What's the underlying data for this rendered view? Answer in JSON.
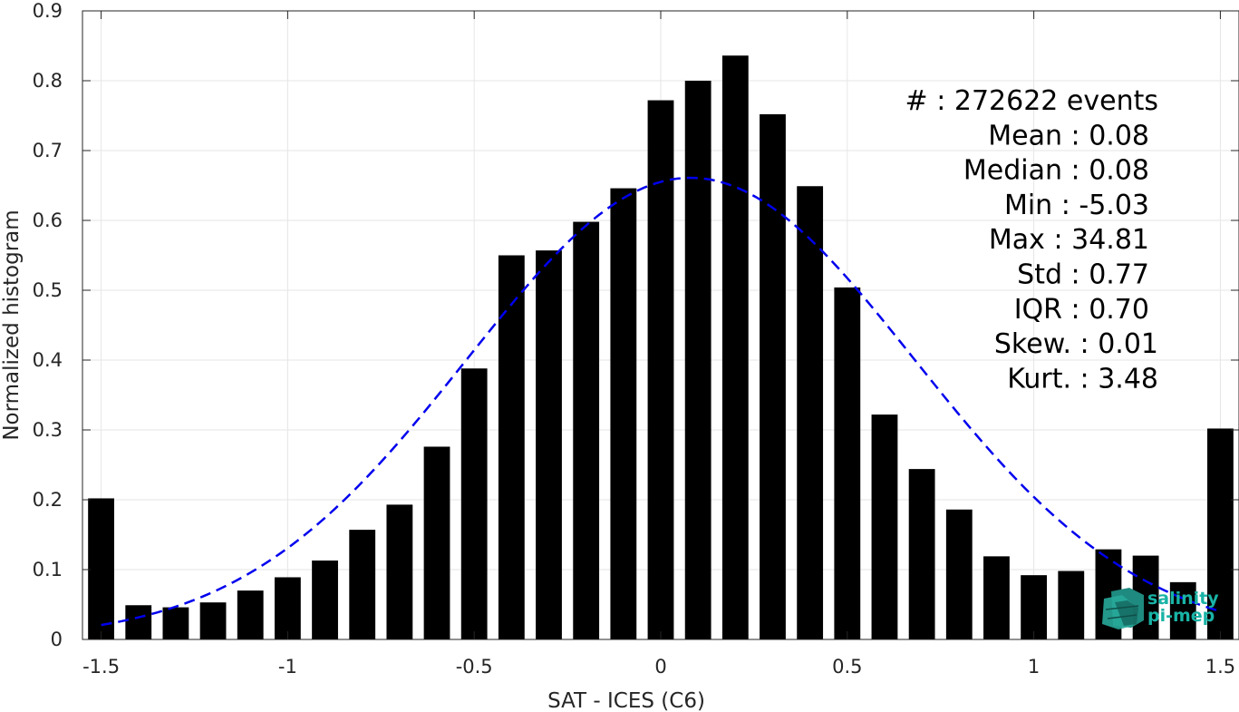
{
  "chart_data": {
    "type": "bar",
    "xlabel": "SAT - ICES (C6)",
    "ylabel": "Normalized histogram",
    "xlim": [
      -1.55,
      1.55
    ],
    "ylim": [
      0,
      0.9
    ],
    "xticks": [
      -1.5,
      -1,
      -0.5,
      0,
      0.5,
      1,
      1.5
    ],
    "xtick_labels": [
      "-1.5",
      "-1",
      "-0.5",
      "0",
      "0.5",
      "1",
      "1.5"
    ],
    "yticks": [
      0,
      0.1,
      0.2,
      0.3,
      0.4,
      0.5,
      0.6,
      0.7,
      0.8,
      0.9
    ],
    "ytick_labels": [
      "0",
      "0.1",
      "0.2",
      "0.3",
      "0.4",
      "0.5",
      "0.6",
      "0.7",
      "0.8",
      "0.9"
    ],
    "grid": true,
    "bar_width": 0.07,
    "bar_color": "#000000",
    "x": [
      -1.5,
      -1.4,
      -1.3,
      -1.2,
      -1.1,
      -1.0,
      -0.9,
      -0.8,
      -0.7,
      -0.6,
      -0.5,
      -0.4,
      -0.3,
      -0.2,
      -0.1,
      0.0,
      0.1,
      0.2,
      0.3,
      0.4,
      0.5,
      0.6,
      0.7,
      0.8,
      0.9,
      1.0,
      1.1,
      1.2,
      1.3,
      1.4,
      1.5
    ],
    "values": [
      0.202,
      0.049,
      0.046,
      0.053,
      0.07,
      0.089,
      0.113,
      0.157,
      0.193,
      0.276,
      0.388,
      0.55,
      0.557,
      0.598,
      0.646,
      0.772,
      0.8,
      0.836,
      0.752,
      0.649,
      0.504,
      0.322,
      0.244,
      0.186,
      0.119,
      0.092,
      0.098,
      0.129,
      0.12,
      0.082,
      0.302
    ],
    "fit": {
      "type": "gaussian",
      "style": "dashed",
      "color": "#0000ee",
      "mean": 0.08,
      "std": 0.6,
      "peak": 0.661,
      "x_range": [
        -1.5,
        1.5
      ]
    },
    "stats_text": [
      "#  : 272622 events",
      "Mean : 0.08",
      "Median : 0.08",
      "Min : -5.03",
      "Max : 34.81",
      "Std : 0.77",
      "IQR : 0.70",
      "Skew. : 0.01",
      "Kurt. : 3.48"
    ]
  },
  "logo": {
    "line1": "salinity",
    "line2": "pi-mep"
  }
}
